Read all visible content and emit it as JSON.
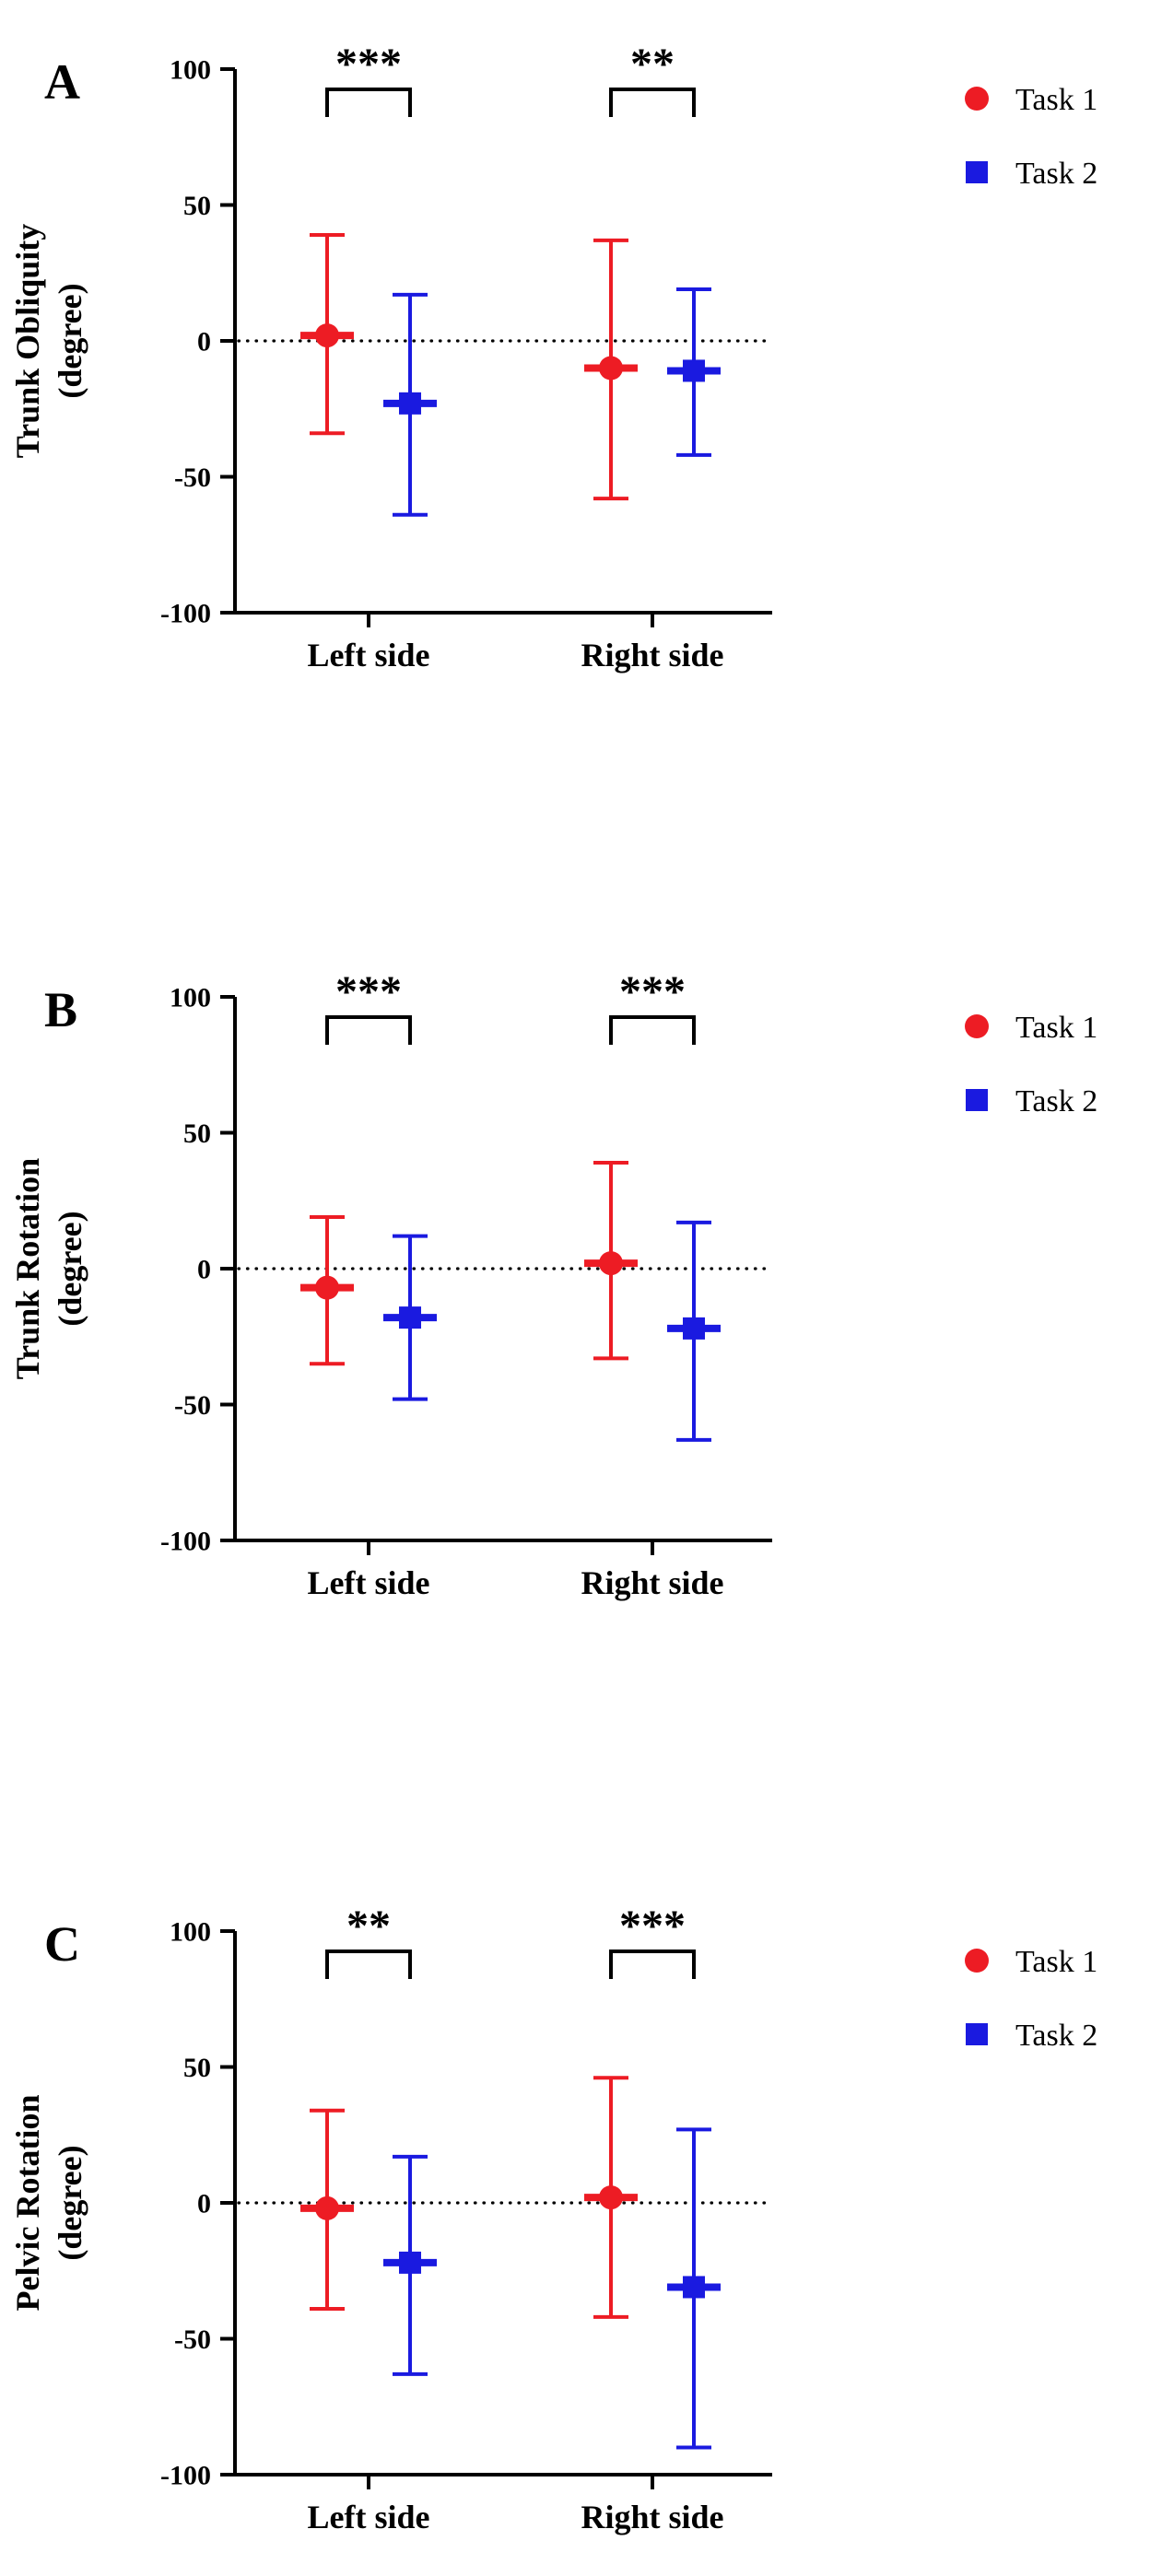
{
  "figure": {
    "background": "#ffffff",
    "legend": {
      "items": [
        {
          "label": "Task 1",
          "marker": "circle",
          "color": "#ED1C24"
        },
        {
          "label": "Task 2",
          "marker": "square",
          "color": "#1A1AE0"
        }
      ]
    }
  },
  "chart_data": [
    {
      "type": "scatter",
      "panel_label": "A",
      "ylabel_lines": [
        "Trunk Obliquity",
        "(degree)"
      ],
      "ylim": [
        -100,
        100
      ],
      "yticks": [
        100,
        50,
        0,
        -50,
        -100
      ],
      "categories": [
        "Left side",
        "Right side"
      ],
      "zero_line": true,
      "grid": false,
      "legend_position": "top-right",
      "series": [
        {
          "name": "Task 1",
          "marker": "circle",
          "color": "#ED1C24",
          "points": [
            {
              "category": "Left side",
              "mean": 2,
              "upper": 39,
              "lower": -34
            },
            {
              "category": "Right side",
              "mean": -10,
              "upper": 37,
              "lower": -58
            }
          ]
        },
        {
          "name": "Task 2",
          "marker": "square",
          "color": "#1A1AE0",
          "points": [
            {
              "category": "Left side",
              "mean": -23,
              "upper": 17,
              "lower": -64
            },
            {
              "category": "Right side",
              "mean": -11,
              "upper": 19,
              "lower": -42
            }
          ]
        }
      ],
      "significance": [
        {
          "category": "Left side",
          "stars": "***"
        },
        {
          "category": "Right side",
          "stars": "**"
        }
      ]
    },
    {
      "type": "scatter",
      "panel_label": "B",
      "ylabel_lines": [
        "Trunk Rotation",
        "(degree)"
      ],
      "ylim": [
        -100,
        100
      ],
      "yticks": [
        100,
        50,
        0,
        -50,
        -100
      ],
      "categories": [
        "Left side",
        "Right side"
      ],
      "zero_line": true,
      "grid": false,
      "legend_position": "top-right",
      "series": [
        {
          "name": "Task 1",
          "marker": "circle",
          "color": "#ED1C24",
          "points": [
            {
              "category": "Left side",
              "mean": -7,
              "upper": 19,
              "lower": -35
            },
            {
              "category": "Right side",
              "mean": 2,
              "upper": 39,
              "lower": -33
            }
          ]
        },
        {
          "name": "Task 2",
          "marker": "square",
          "color": "#1A1AE0",
          "points": [
            {
              "category": "Left side",
              "mean": -18,
              "upper": 12,
              "lower": -48
            },
            {
              "category": "Right side",
              "mean": -22,
              "upper": 17,
              "lower": -63
            }
          ]
        }
      ],
      "significance": [
        {
          "category": "Left side",
          "stars": "***"
        },
        {
          "category": "Right side",
          "stars": "***"
        }
      ]
    },
    {
      "type": "scatter",
      "panel_label": "C",
      "ylabel_lines": [
        "Pelvic Rotation",
        "(degree)"
      ],
      "ylim": [
        -100,
        100
      ],
      "yticks": [
        100,
        50,
        0,
        -50,
        -100
      ],
      "categories": [
        "Left side",
        "Right side"
      ],
      "zero_line": true,
      "grid": false,
      "legend_position": "top-right",
      "series": [
        {
          "name": "Task 1",
          "marker": "circle",
          "color": "#ED1C24",
          "points": [
            {
              "category": "Left side",
              "mean": -2,
              "upper": 34,
              "lower": -39
            },
            {
              "category": "Right side",
              "mean": 2,
              "upper": 46,
              "lower": -42
            }
          ]
        },
        {
          "name": "Task 2",
          "marker": "square",
          "color": "#1A1AE0",
          "points": [
            {
              "category": "Left side",
              "mean": -22,
              "upper": 17,
              "lower": -63
            },
            {
              "category": "Right side",
              "mean": -31,
              "upper": 27,
              "lower": -90
            }
          ]
        }
      ],
      "significance": [
        {
          "category": "Left side",
          "stars": "**"
        },
        {
          "category": "Right side",
          "stars": "***"
        }
      ]
    }
  ]
}
